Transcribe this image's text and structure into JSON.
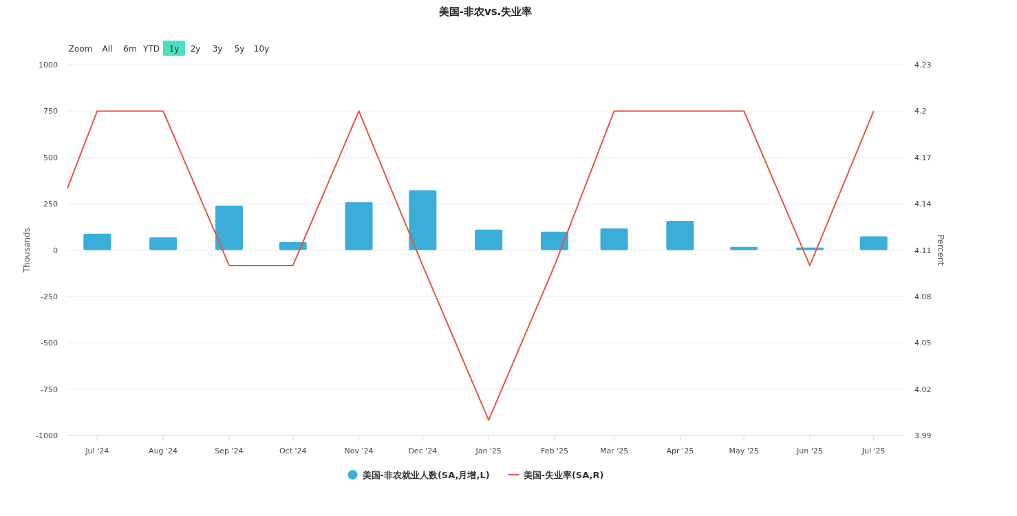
{
  "chart_data": {
    "type": "bar",
    "title": "美国-非农vs.失业率",
    "annotations": [
      "Zoom",
      "All",
      "6m",
      "YTD",
      "1y",
      "2y",
      "3y",
      "5y",
      "10y"
    ],
    "x": [
      "2024-07-01",
      "2024-08-01",
      "2024-09-01",
      "2024-10-01",
      "2024-11-01",
      "2024-12-01",
      "2025-01-01",
      "2025-02-01",
      "2025-03-01",
      "2025-04-01",
      "2025-05-01",
      "2025-06-01",
      "2025-07-01"
    ],
    "xlim": [
      "2024-06-17",
      "2025-07-15"
    ],
    "xticks": [
      {
        "value": "2024-07-01",
        "label": "Jul '24"
      },
      {
        "value": "2024-08-01",
        "label": "Aug '24"
      },
      {
        "value": "2024-09-01",
        "label": "Sep '24"
      },
      {
        "value": "2024-10-01",
        "label": "Oct '24"
      },
      {
        "value": "2024-11-01",
        "label": "Nov '24"
      },
      {
        "value": "2024-12-01",
        "label": "Dec '24"
      },
      {
        "value": "2025-01-01",
        "label": "Jan '25"
      },
      {
        "value": "2025-02-01",
        "label": "Feb '25"
      },
      {
        "value": "2025-03-01",
        "label": "Mar '25"
      },
      {
        "value": "2025-04-01",
        "label": "Apr '25"
      },
      {
        "value": "2025-05-01",
        "label": "May '25"
      },
      {
        "value": "2025-06-01",
        "label": "Jun '25"
      },
      {
        "value": "2025-07-01",
        "label": "Jul '25"
      }
    ],
    "ylabel": "Thousands",
    "y2label": "Percent",
    "ylim": [
      -1000,
      1000
    ],
    "yticks": [
      -1000,
      -750,
      -500,
      -250,
      0,
      250,
      500,
      750,
      1000
    ],
    "y2lim": [
      3.99,
      4.23
    ],
    "y2ticks": [
      3.99,
      4.02,
      4.05,
      4.08,
      4.11,
      4.14,
      4.17,
      4.2,
      4.23
    ],
    "grid": "y",
    "legend": "bottom",
    "series": [
      {
        "name": "美国-非农就业人数(SA,月增,L)",
        "color": "#3aaed8",
        "values": [
          88,
          69,
          240,
          44,
          259,
          323,
          110,
          99,
          117,
          158,
          18,
          14,
          74
        ]
      },
      {
        "name": "美国-失业率(SA,R)",
        "type": "line",
        "axis": "y2",
        "color": "#e8533f",
        "line_style": "solid",
        "marker": "none",
        "x": [
          "2024-06-17",
          "2024-07-01",
          "2024-08-01",
          "2024-09-01",
          "2024-10-01",
          "2024-11-01",
          "2024-12-01",
          "2025-01-01",
          "2025-02-01",
          "2025-03-01",
          "2025-04-01",
          "2025-05-01",
          "2025-06-01",
          "2025-07-01"
        ],
        "values": [
          4.15,
          4.2,
          4.2,
          4.1,
          4.1,
          4.2,
          4.1,
          4.0,
          4.1,
          4.2,
          4.2,
          4.2,
          4.1,
          4.2
        ]
      }
    ]
  }
}
